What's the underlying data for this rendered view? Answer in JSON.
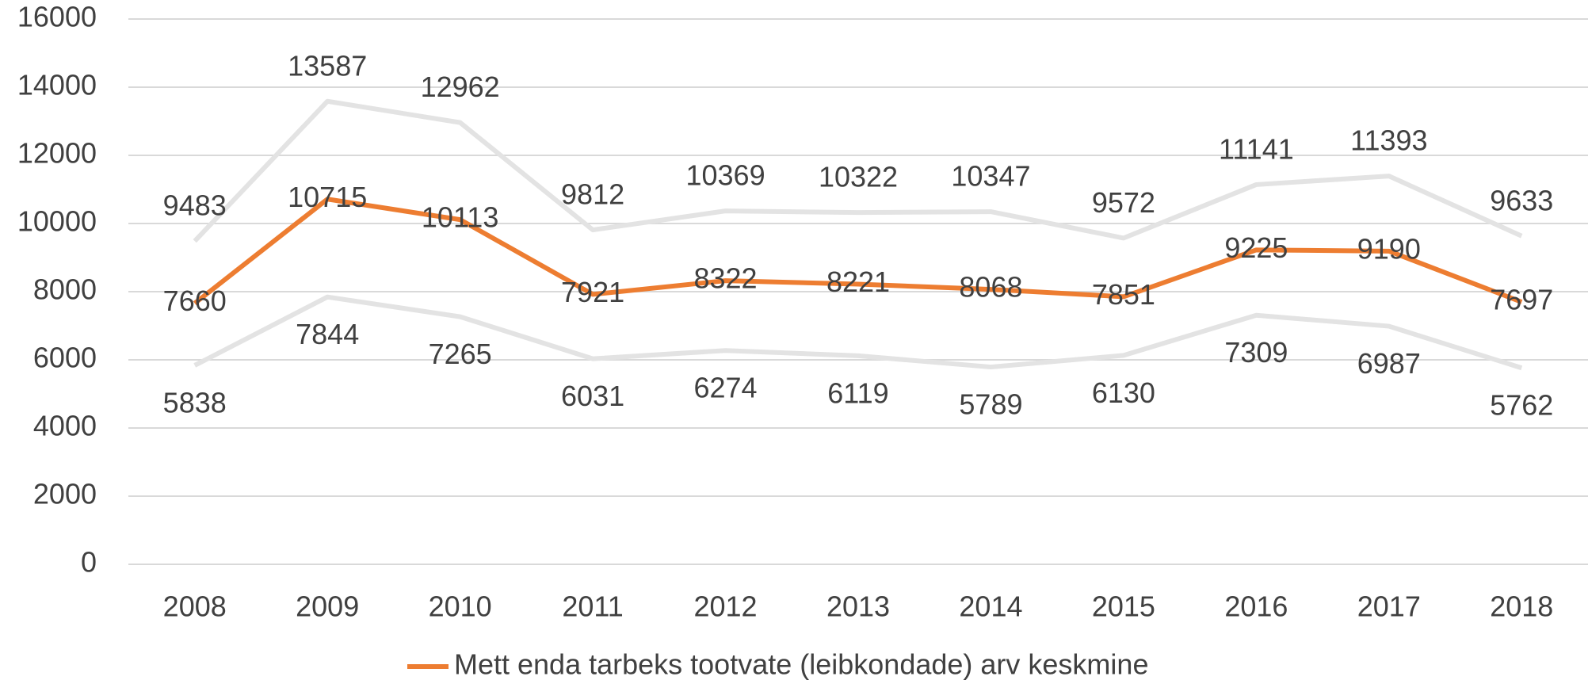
{
  "chart_data": {
    "type": "line",
    "categories": [
      "2008",
      "2009",
      "2010",
      "2011",
      "2012",
      "2013",
      "2014",
      "2015",
      "2016",
      "2017",
      "2018"
    ],
    "series": [
      {
        "color": "#e3e3e3",
        "values": [
          9483,
          13587,
          12962,
          9812,
          10369,
          10322,
          10347,
          9572,
          11141,
          11393,
          9633
        ]
      },
      {
        "name": "Mett enda tarbeks tootvate (leibkondade) arv keskmine",
        "color": "#ed7d31",
        "values": [
          7660,
          10715,
          10113,
          7921,
          8322,
          8221,
          8068,
          7851,
          9225,
          9190,
          7697
        ]
      },
      {
        "color": "#e3e3e3",
        "values": [
          5838,
          7844,
          7265,
          6031,
          6274,
          6119,
          5789,
          6130,
          7309,
          6987,
          5762
        ]
      }
    ],
    "ylim": [
      0,
      16000
    ],
    "yticks": [
      0,
      2000,
      4000,
      6000,
      8000,
      10000,
      12000,
      14000,
      16000
    ],
    "grid": true,
    "legend": "bottom"
  }
}
